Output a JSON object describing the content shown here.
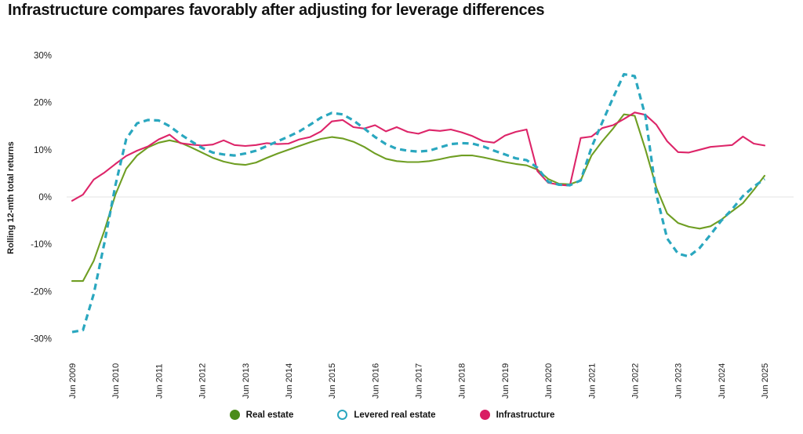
{
  "title": "Infrastructure compares favorably after adjusting for leverage differences",
  "chart_data": {
    "type": "line",
    "title": "Infrastructure compares favorably after adjusting for leverage differences",
    "xlabel": "",
    "ylabel": "Rolling 12-mth total returns",
    "ylim": [
      -30,
      30
    ],
    "y_ticks": [
      30,
      20,
      10,
      0,
      -10,
      -20,
      -30
    ],
    "y_tick_suffix": "%",
    "x_ticks": [
      "Jun 2009",
      "Jun 2010",
      "Jun 2011",
      "Jun 2012",
      "Jun 2013",
      "Jun 2014",
      "Jun 2015",
      "Jun 2016",
      "Jun 2017",
      "Jun 2018",
      "Jun 2019",
      "Jun 2020",
      "Jun 2021",
      "Jun 2022",
      "Jun 2023",
      "Jun 2024",
      "Jun 2025"
    ],
    "x_frequency": "quarterly from Jun 2009 to Jun 2025",
    "grid": "horizontal zero line only",
    "zero_line_color": "#e3e3e3",
    "legend_position": "bottom",
    "series": [
      {
        "name": "Real estate",
        "color": "#6f9e23",
        "dot_color": "#4a8c19",
        "style": "solid",
        "values": [
          -17.8,
          -17.8,
          -13.5,
          -7,
          0.5,
          6,
          8.8,
          10.5,
          11.5,
          12,
          11.5,
          10.5,
          9.4,
          8.3,
          7.5,
          7,
          6.8,
          7.3,
          8.3,
          9.2,
          10,
          10.8,
          11.6,
          12.3,
          12.7,
          12.4,
          11.7,
          10.6,
          9.2,
          8.1,
          7.6,
          7.4,
          7.4,
          7.6,
          8,
          8.5,
          8.8,
          8.8,
          8.4,
          7.9,
          7.4,
          7,
          6.7,
          5.8,
          3.8,
          2.8,
          2.7,
          3.5,
          8.8,
          11.8,
          14.5,
          17.5,
          17.2,
          10,
          2,
          -3.5,
          -5.5,
          -6.3,
          -6.7,
          -6.2,
          -4.8,
          -3,
          -1.3,
          1.5,
          4.5
        ]
      },
      {
        "name": "Levered real estate",
        "color": "#2aa7bf",
        "dot_color": "#2aa7bf",
        "style": "dashed",
        "values": [
          -28.6,
          -28.2,
          -20.5,
          -9.5,
          2.5,
          12.3,
          15.6,
          16.3,
          16.2,
          15,
          13.3,
          11.8,
          10.4,
          9.4,
          9,
          8.8,
          9.2,
          9.8,
          10.8,
          11.8,
          12.8,
          13.9,
          15.3,
          16.8,
          17.8,
          17.5,
          16.2,
          14.5,
          12.7,
          11.2,
          10.2,
          9.8,
          9.6,
          9.8,
          10.5,
          11.2,
          11.4,
          11.3,
          10.7,
          9.8,
          9,
          8.2,
          7.8,
          6.2,
          3.2,
          2.6,
          2.5,
          3.5,
          10.5,
          15.8,
          21,
          26,
          25.6,
          17,
          0.5,
          -8.8,
          -12,
          -12.6,
          -10.8,
          -8,
          -5,
          -2.6,
          0.2,
          2.2,
          3.8
        ]
      },
      {
        "name": "Infrastructure",
        "color": "#dd2569",
        "dot_color": "#d91d63",
        "style": "solid",
        "values": [
          -0.8,
          0.5,
          3.7,
          5.2,
          7,
          8.7,
          9.8,
          10.7,
          12.2,
          13.2,
          11.4,
          11.1,
          10.9,
          11.1,
          12,
          11,
          10.8,
          11,
          11.4,
          11.2,
          11.3,
          12.2,
          12.7,
          13.9,
          16,
          16.3,
          14.8,
          14.5,
          15.2,
          13.9,
          14.8,
          13.8,
          13.4,
          14.2,
          14,
          14.3,
          13.7,
          12.9,
          11.8,
          11.5,
          13,
          13.8,
          14.3,
          5.5,
          3,
          2.6,
          2.4,
          12.5,
          12.8,
          14.6,
          15.2,
          16.5,
          17.9,
          17.4,
          15.3,
          11.8,
          9.5,
          9.4,
          10,
          10.6,
          10.8,
          11,
          12.8,
          11.3,
          10.9
        ]
      }
    ]
  }
}
